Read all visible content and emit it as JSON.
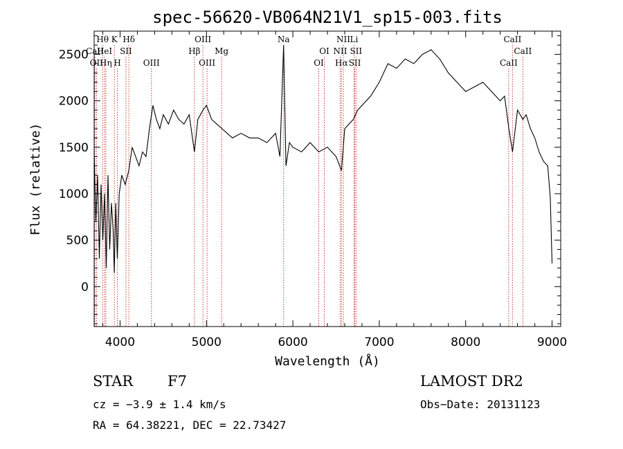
{
  "chart_data": {
    "type": "line",
    "title": "spec-56620-VB064N21V1_sp15-003.fits",
    "xlabel": "Wavelength (Å)",
    "ylabel": "Flux (relative)",
    "xlim": [
      3700,
      9100
    ],
    "ylim": [
      -430,
      2750
    ],
    "xticks": [
      4000,
      5000,
      6000,
      7000,
      8000,
      9000
    ],
    "yticks": [
      0,
      500,
      1000,
      1500,
      2000,
      2500
    ],
    "grid": false,
    "series": [
      {
        "x": [
          3700,
          3720,
          3740,
          3760,
          3780,
          3800,
          3820,
          3840,
          3860,
          3880,
          3900,
          3920,
          3933,
          3950,
          3968,
          3990,
          4020,
          4060,
          4101,
          4140,
          4180,
          4220,
          4260,
          4300,
          4340,
          4380,
          4420,
          4460,
          4500,
          4560,
          4620,
          4680,
          4740,
          4800,
          4861,
          4900,
          4960,
          5000,
          5060,
          5120,
          5180,
          5240,
          5300,
          5400,
          5500,
          5600,
          5700,
          5800,
          5850,
          5893,
          5920,
          5960,
          6000,
          6100,
          6200,
          6300,
          6400,
          6500,
          6563,
          6600,
          6650,
          6700,
          6750,
          6800,
          6900,
          7000,
          7100,
          7200,
          7300,
          7400,
          7500,
          7600,
          7700,
          7800,
          7900,
          8000,
          8100,
          8200,
          8300,
          8400,
          8450,
          8500,
          8542,
          8600,
          8662,
          8700,
          8750,
          8800,
          8850,
          8900,
          8950,
          8980,
          9000
        ],
        "y": [
          1450,
          700,
          1200,
          300,
          1100,
          500,
          1000,
          200,
          1200,
          400,
          900,
          600,
          150,
          900,
          300,
          1000,
          1200,
          1100,
          1250,
          1500,
          1400,
          1300,
          1450,
          1400,
          1700,
          1950,
          1800,
          1700,
          1850,
          1750,
          1900,
          1800,
          1750,
          1850,
          1450,
          1800,
          1900,
          1950,
          1800,
          1750,
          1700,
          1650,
          1600,
          1650,
          1600,
          1600,
          1550,
          1650,
          1400,
          2600,
          1300,
          1550,
          1500,
          1450,
          1550,
          1450,
          1500,
          1400,
          1250,
          1700,
          1750,
          1800,
          1900,
          1950,
          2050,
          2200,
          2400,
          2350,
          2450,
          2400,
          2500,
          2550,
          2450,
          2300,
          2200,
          2100,
          2150,
          2200,
          2100,
          2000,
          2050,
          1700,
          1450,
          1900,
          1800,
          1850,
          1700,
          1600,
          1450,
          1350,
          1300,
          950,
          250
        ]
      }
    ],
    "line_labels": [
      {
        "text": "Hθ",
        "wave": 3798,
        "row": 1
      },
      {
        "text": "K",
        "wave": 3934,
        "row": 1
      },
      {
        "text": "Hδ",
        "wave": 4102,
        "row": 1
      },
      {
        "text": "CaII",
        "wave": 3700,
        "row": 2
      },
      {
        "text": "HeI",
        "wave": 3820,
        "row": 2
      },
      {
        "text": "SII",
        "wave": 4068,
        "row": 2
      },
      {
        "text": "OII",
        "wave": 3727,
        "row": 3
      },
      {
        "text": "Hη",
        "wave": 3835,
        "row": 3
      },
      {
        "text": "H",
        "wave": 3969,
        "row": 3
      },
      {
        "text": "OIII",
        "wave": 4363,
        "row": 3
      },
      {
        "text": "OIII",
        "wave": 4959,
        "row": 1
      },
      {
        "text": "Hβ",
        "wave": 4861,
        "row": 2
      },
      {
        "text": "Mg",
        "wave": 5175,
        "row": 2
      },
      {
        "text": "OIII",
        "wave": 5007,
        "row": 3
      },
      {
        "text": "Na",
        "wave": 5893,
        "row": 1
      },
      {
        "text": "OI",
        "wave": 6364,
        "row": 2
      },
      {
        "text": "OI",
        "wave": 6300,
        "row": 3
      },
      {
        "text": "NII",
        "wave": 6584,
        "row": 1
      },
      {
        "text": "Li",
        "wave": 6708,
        "row": 1
      },
      {
        "text": "NII",
        "wave": 6548,
        "row": 2
      },
      {
        "text": "SII",
        "wave": 6731,
        "row": 2
      },
      {
        "text": "Hα",
        "wave": 6563,
        "row": 3
      },
      {
        "text": "SII",
        "wave": 6717,
        "row": 3
      },
      {
        "text": "CaII",
        "wave": 8542,
        "row": 1
      },
      {
        "text": "CaII",
        "wave": 8662,
        "row": 2
      },
      {
        "text": "CaII",
        "wave": 8498,
        "row": 3
      }
    ],
    "line_color": "#000000",
    "marker_color": "#c0392b"
  },
  "info": {
    "object_class": "STAR",
    "subclass": "F7",
    "survey": "LAMOST DR2",
    "cz": "cz = −3.9 ± 1.4 km/s",
    "obs_date": "Obs−Date: 20131123",
    "coords": "RA =  64.38221, DEC =  22.73427"
  }
}
